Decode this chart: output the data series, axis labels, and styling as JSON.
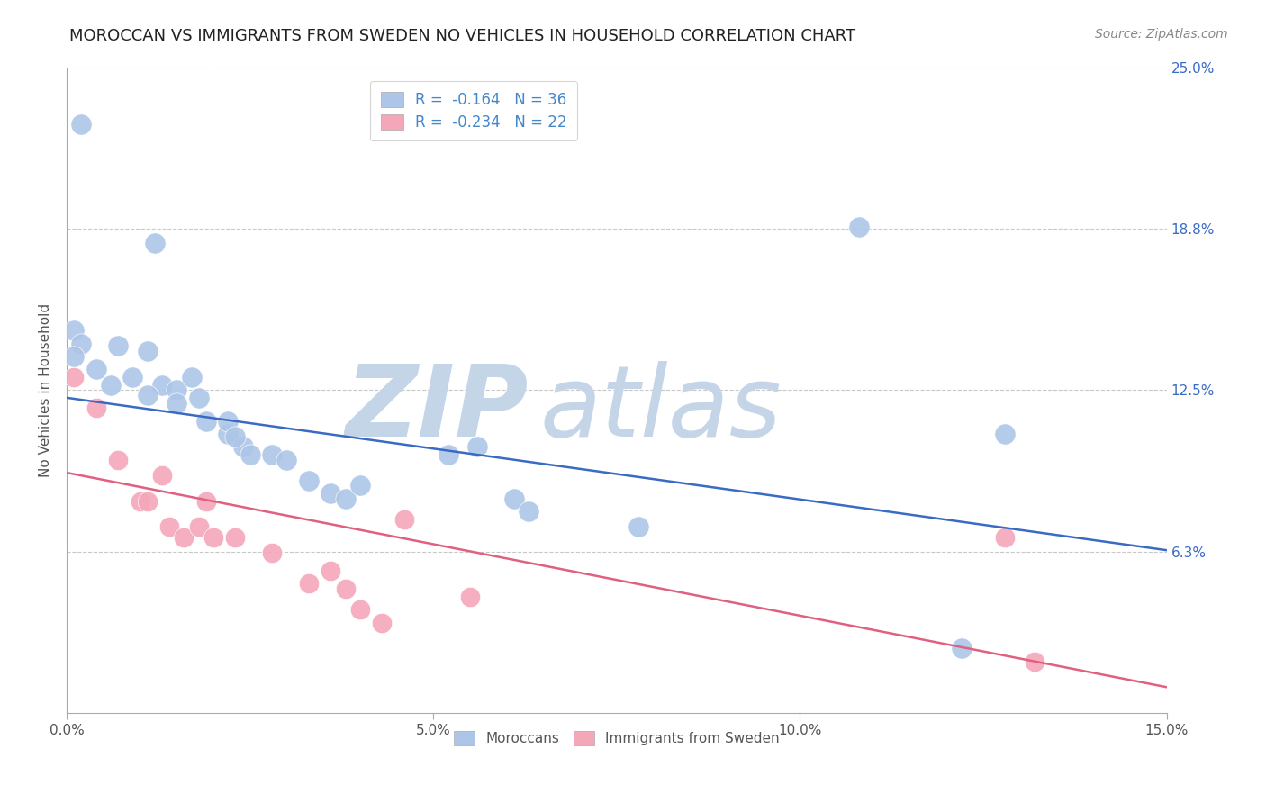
{
  "title": "MOROCCAN VS IMMIGRANTS FROM SWEDEN NO VEHICLES IN HOUSEHOLD CORRELATION CHART",
  "source": "Source: ZipAtlas.com",
  "ylabel": "No Vehicles in Household",
  "xlim": [
    0.0,
    0.15
  ],
  "ylim": [
    0.0,
    0.25
  ],
  "yticks": [
    0.0625,
    0.125,
    0.1875,
    0.25
  ],
  "ytick_labels": [
    "6.3%",
    "12.5%",
    "18.8%",
    "25.0%"
  ],
  "xticks": [
    0.0,
    0.05,
    0.1,
    0.15
  ],
  "xtick_labels": [
    "0.0%",
    "5.0%",
    "10.0%",
    "15.0%"
  ],
  "moroccan_R": -0.164,
  "moroccan_N": 36,
  "sweden_R": -0.234,
  "sweden_N": 22,
  "moroccan_color": "#adc6e8",
  "sweden_color": "#f4a7b9",
  "moroccan_line_color": "#3a6bc4",
  "sweden_line_color": "#e06080",
  "background_color": "#ffffff",
  "grid_color": "#c8c8c8",
  "watermark_zip": "ZIP",
  "watermark_atlas": "atlas",
  "watermark_color_zip": "#c5d5e8",
  "watermark_color_atlas": "#c5d5e8",
  "moroccan_x": [
    0.002,
    0.012,
    0.001,
    0.002,
    0.001,
    0.004,
    0.007,
    0.006,
    0.009,
    0.011,
    0.013,
    0.011,
    0.015,
    0.017,
    0.015,
    0.018,
    0.019,
    0.022,
    0.022,
    0.024,
    0.025,
    0.023,
    0.028,
    0.03,
    0.033,
    0.036,
    0.038,
    0.04,
    0.052,
    0.056,
    0.061,
    0.063,
    0.078,
    0.108,
    0.128,
    0.122
  ],
  "moroccan_y": [
    0.228,
    0.182,
    0.148,
    0.143,
    0.138,
    0.133,
    0.142,
    0.127,
    0.13,
    0.14,
    0.127,
    0.123,
    0.125,
    0.13,
    0.12,
    0.122,
    0.113,
    0.108,
    0.113,
    0.103,
    0.1,
    0.107,
    0.1,
    0.098,
    0.09,
    0.085,
    0.083,
    0.088,
    0.1,
    0.103,
    0.083,
    0.078,
    0.072,
    0.188,
    0.108,
    0.025
  ],
  "sweden_x": [
    0.001,
    0.004,
    0.007,
    0.01,
    0.011,
    0.013,
    0.014,
    0.016,
    0.018,
    0.019,
    0.02,
    0.023,
    0.028,
    0.033,
    0.036,
    0.038,
    0.04,
    0.043,
    0.046,
    0.055,
    0.128,
    0.132
  ],
  "sweden_y": [
    0.13,
    0.118,
    0.098,
    0.082,
    0.082,
    0.092,
    0.072,
    0.068,
    0.072,
    0.082,
    0.068,
    0.068,
    0.062,
    0.05,
    0.055,
    0.048,
    0.04,
    0.035,
    0.075,
    0.045,
    0.068,
    0.02
  ],
  "title_fontsize": 13,
  "label_fontsize": 11,
  "tick_fontsize": 11,
  "legend_fontsize": 12,
  "source_fontsize": 10,
  "moroccan_line_x0": 0.0,
  "moroccan_line_y0": 0.122,
  "moroccan_line_x1": 0.15,
  "moroccan_line_y1": 0.063,
  "sweden_line_x0": 0.0,
  "sweden_line_y0": 0.093,
  "sweden_line_x1": 0.15,
  "sweden_line_y1": 0.01
}
